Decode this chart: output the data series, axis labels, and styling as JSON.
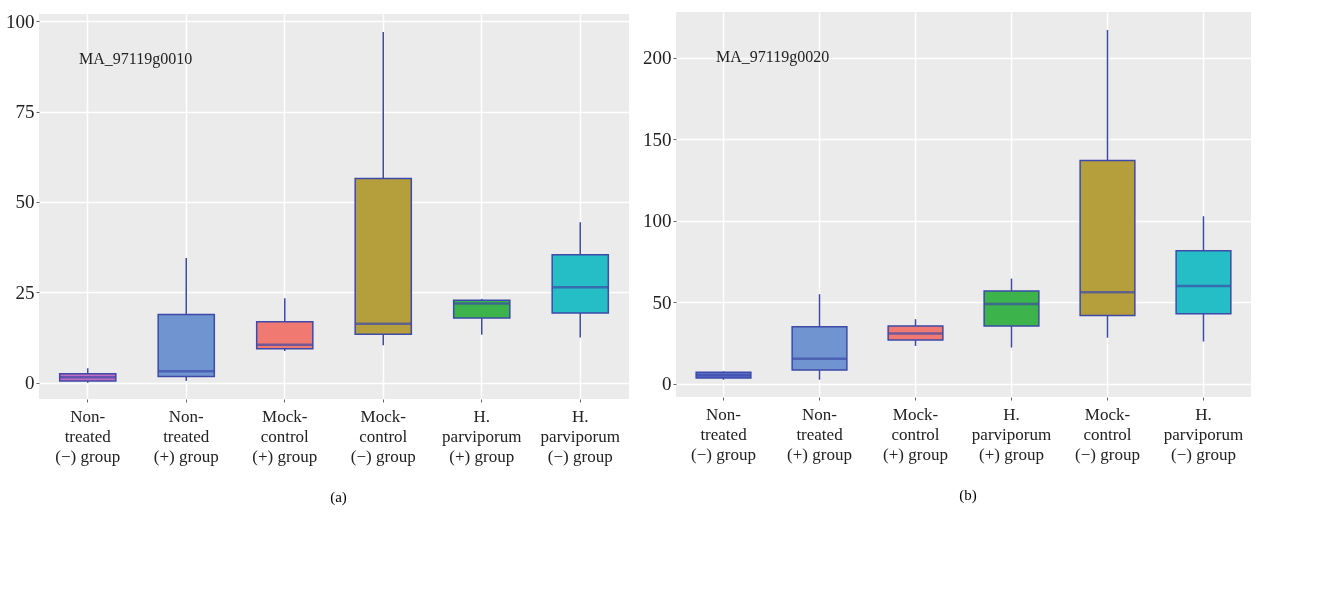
{
  "chart_data": [
    {
      "type": "box",
      "categories": [
        "Non-treated (−) group",
        "Non-treated (+) group",
        "Mock-control (+) group",
        "Mock-control (−) group",
        "H. parviporum (+) group",
        "H. parviporum (−) group"
      ],
      "boxes": [
        {
          "low": 0,
          "q1": 0.5,
          "median": 1.5,
          "q3": 2.5,
          "high": 4
        },
        {
          "low": 0.5,
          "q1": 1.7,
          "median": 3.2,
          "q3": 18.9,
          "high": 34.5
        },
        {
          "low": 8.8,
          "q1": 9.4,
          "median": 10.5,
          "q3": 16.9,
          "high": 23.4
        },
        {
          "low": 10.4,
          "q1": 13.4,
          "median": 16.3,
          "q3": 56.5,
          "high": 97
        },
        {
          "low": 13.3,
          "q1": 17.9,
          "median": 21.9,
          "q3": 22.8,
          "high": 23.2
        },
        {
          "low": 12.5,
          "q1": 19.3,
          "median": 26.4,
          "q3": 35.4,
          "high": 44.4
        }
      ],
      "colors": [
        "#c06cc0",
        "#7094cf",
        "#f07a72",
        "#b59f3c",
        "#3cb44b",
        "#26bec6"
      ],
      "ylim": [
        -4.5,
        102
      ],
      "yticks": [
        0,
        25,
        50,
        75,
        100
      ],
      "grid": true,
      "annotations": [
        "MA_97119g0010",
        "(a)"
      ]
    },
    {
      "type": "box",
      "categories": [
        "Non-treated (−) group",
        "Non-treated (+) group",
        "Mock-control (+) group",
        "H. parviporum (+) group",
        "Mock-control (−) group",
        "H. parviporum (−) group"
      ],
      "boxes": [
        {
          "low": 2.6,
          "q1": 3.7,
          "median": 5.3,
          "q3": 7.2,
          "high": 7.7
        },
        {
          "low": 2.6,
          "q1": 8.5,
          "median": 15.4,
          "q3": 35,
          "high": 55
        },
        {
          "low": 23.3,
          "q1": 27,
          "median": 31,
          "q3": 35.5,
          "high": 39.7
        },
        {
          "low": 22.3,
          "q1": 35.5,
          "median": 49,
          "q3": 57,
          "high": 64.6
        },
        {
          "low": 28.3,
          "q1": 41.9,
          "median": 56.2,
          "q3": 137,
          "high": 217
        },
        {
          "low": 26,
          "q1": 43,
          "median": 60,
          "q3": 81.6,
          "high": 102.8
        }
      ],
      "colors": [
        "#5b6cc9",
        "#7094cf",
        "#f07a72",
        "#3cb44b",
        "#b59f3c",
        "#26bec6"
      ],
      "ylim": [
        -8,
        228
      ],
      "yticks": [
        0,
        50,
        100,
        150,
        200
      ],
      "grid": true,
      "annotations": [
        "MA_97119g0020",
        "(b)"
      ]
    }
  ]
}
